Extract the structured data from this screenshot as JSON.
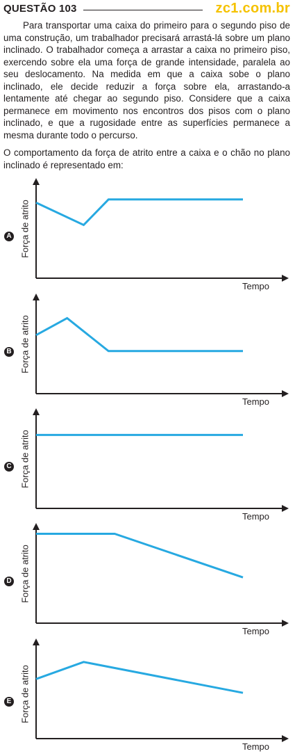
{
  "question": {
    "title": "QUESTÃO 103",
    "site": "zc1.com.br"
  },
  "statement": {
    "paragraph": "Para transportar uma caixa do primeiro para o segundo piso de uma construção, um trabalhador precisará arrastá-lá sobre um plano inclinado. O trabalhador começa a arrastar a caixa no primeiro piso, exercendo sobre ela uma força de grande intensidade, paralela ao seu deslocamento. Na medida em que a caixa sobe o plano inclinado, ele decide reduzir a força sobre ela, arrastando-a lentamente até chegar ao segundo piso. Considere que a caixa permanece em movimento nos encontros dos pisos com o plano inclinado, e que a rugosidade entre as superfícies permanece a mesma durante todo o percurso.",
    "prompt": "O comportamento da força de atrito entre a caixa e o chão no plano inclinado é representado em:"
  },
  "options": [
    {
      "letter": "A",
      "ylabel": "Força de atrito",
      "xlabel": "Tempo",
      "chart_data": {
        "type": "line",
        "x": [
          0,
          23,
          35,
          100
        ],
        "y": [
          71,
          50,
          74,
          74
        ]
      }
    },
    {
      "letter": "B",
      "ylabel": "Força de atrito",
      "xlabel": "Tempo",
      "chart_data": {
        "type": "line",
        "x": [
          0,
          15,
          35,
          100
        ],
        "y": [
          55,
          71,
          40,
          40
        ]
      }
    },
    {
      "letter": "C",
      "ylabel": "Força de atrito",
      "xlabel": "Tempo",
      "chart_data": {
        "type": "line",
        "x": [
          0,
          100
        ],
        "y": [
          69,
          69
        ]
      }
    },
    {
      "letter": "D",
      "ylabel": "Força de atrito",
      "xlabel": "Tempo",
      "chart_data": {
        "type": "line",
        "x": [
          0,
          38,
          100
        ],
        "y": [
          84,
          84,
          43
        ]
      }
    },
    {
      "letter": "E",
      "ylabel": "Força de atrito",
      "xlabel": "Tempo",
      "chart_data": {
        "type": "line",
        "x": [
          0,
          23,
          100
        ],
        "y": [
          56,
          72,
          43
        ]
      }
    }
  ],
  "colors": {
    "line": "#27a9e1",
    "axis": "#231f20",
    "site": "#f5c200"
  }
}
